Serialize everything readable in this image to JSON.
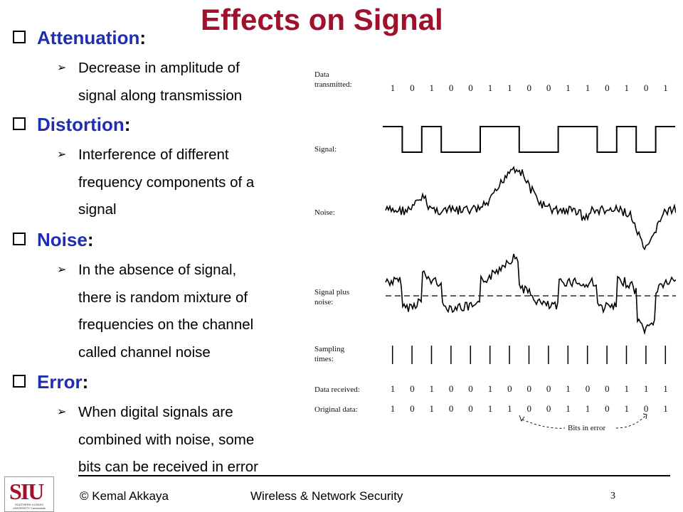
{
  "title": "Effects on Signal",
  "bullets": [
    {
      "label": "Attenuation",
      "colon": ":",
      "subs": [
        [
          "Decrease in amplitude of",
          "signal along transmission"
        ]
      ]
    },
    {
      "label": "Distortion",
      "colon": ":",
      "subs": [
        [
          "Interference of different",
          "frequency components of a",
          "signal"
        ]
      ]
    },
    {
      "label": "Noise",
      "colon": ":",
      "subs": [
        [
          "In the absence of signal,",
          "there is random mixture of",
          "frequencies on the channel",
          "called channel noise"
        ]
      ]
    },
    {
      "label": "Error",
      "colon": ":",
      "subs": [
        [
          "When digital signals are",
          "combined with noise, some",
          "bits can be received in error"
        ]
      ]
    }
  ],
  "figure": {
    "labels": {
      "data_transmitted": [
        "Data",
        "transmitted:"
      ],
      "signal": "Signal:",
      "noise": "Noise:",
      "signal_plus_noise": [
        "Signal plus",
        "noise:"
      ],
      "sampling_times": [
        "Sampling",
        "times:"
      ],
      "data_received": "Data received:",
      "original_data": "Original data:",
      "bits_in_error": "Bits in error"
    },
    "data_transmitted": [
      1,
      0,
      1,
      0,
      0,
      1,
      1,
      0,
      0,
      1,
      1,
      0,
      1,
      0,
      1
    ],
    "data_received": [
      1,
      0,
      1,
      0,
      0,
      1,
      0,
      0,
      0,
      1,
      0,
      0,
      1,
      1,
      1
    ],
    "original_data": [
      1,
      0,
      1,
      0,
      0,
      1,
      1,
      0,
      0,
      1,
      1,
      0,
      1,
      0,
      1
    ]
  },
  "logo": {
    "mark": "SIU",
    "caption": "SOUTHERN ILLINOIS UNIVERSITY Carbondale"
  },
  "footer": {
    "author": "© Kemal Akkaya",
    "course": "Wireless & Network Security",
    "page": "3"
  }
}
